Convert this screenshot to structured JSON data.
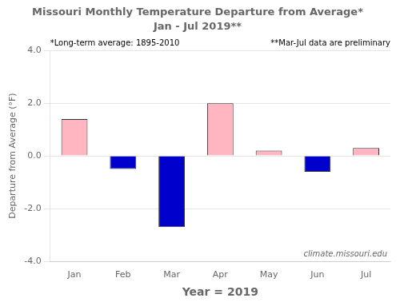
{
  "chart_data": {
    "type": "bar",
    "title": "Missouri Monthly Temperature Departure from Average*",
    "subtitle": "Jan - Jul 2019**",
    "xlabel": "Year = 2019",
    "ylabel": "Departure from Average (°F)",
    "categories": [
      "Jan",
      "Feb",
      "Mar",
      "Apr",
      "May",
      "Jun",
      "Jul"
    ],
    "values": [
      1.4,
      -0.5,
      -2.7,
      2.0,
      0.2,
      -0.6,
      0.3
    ],
    "colors": [
      "#ffb6c1",
      "#0000cd",
      "#0000cd",
      "#ffb6c1",
      "#ffb6c1",
      "#0000cd",
      "#ffb6c1"
    ],
    "ylim": [
      -4.0,
      4.0
    ],
    "yticks": [
      {
        "value": -4.0,
        "label": "-4.0"
      },
      {
        "value": -2.0,
        "label": "-2.0"
      },
      {
        "value": 0.0,
        "label": "0.0"
      },
      {
        "value": 2.0,
        "label": "2.0"
      },
      {
        "value": 4.0,
        "label": "4.0"
      }
    ],
    "grid": true,
    "annotations": [
      "*Long-term average: 1895-2010",
      "**Mar-Jul data are preliminary",
      "climate.missouri.edu"
    ]
  }
}
